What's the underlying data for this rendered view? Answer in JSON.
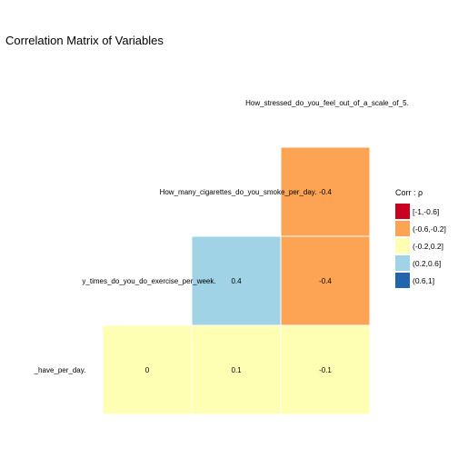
{
  "chart_data": {
    "type": "heatmap",
    "title": "Correlation Matrix of Variables",
    "variables": [
      "_have_per_day.",
      "y_times_do_you_do_exercise_per_week.",
      "How_many_cigarettes_do_you_smoke_per_day.",
      "How_stressed_do_you_feel_out_of_a_scale_of_5."
    ],
    "cells": [
      {
        "row": "_have_per_day.",
        "col": "y_times_do_you_do_exercise_per_week.",
        "value": 0,
        "label": "0",
        "bin": 2
      },
      {
        "row": "_have_per_day.",
        "col": "How_many_cigarettes_do_you_smoke_per_day.",
        "value": 0.1,
        "label": "0.1",
        "bin": 2
      },
      {
        "row": "_have_per_day.",
        "col": "How_stressed_do_you_feel_out_of_a_scale_of_5.",
        "value": -0.1,
        "label": "-0.1",
        "bin": 2
      },
      {
        "row": "y_times_do_you_do_exercise_per_week.",
        "col": "How_many_cigarettes_do_you_smoke_per_day.",
        "value": 0.4,
        "label": "0.4",
        "bin": 3
      },
      {
        "row": "y_times_do_you_do_exercise_per_week.",
        "col": "How_stressed_do_you_feel_out_of_a_scale_of_5.",
        "value": -0.4,
        "label": "-0.4",
        "bin": 1
      },
      {
        "row": "How_many_cigarettes_do_you_smoke_per_day.",
        "col": "How_stressed_do_you_feel_out_of_a_scale_of_5.",
        "value": -0.4,
        "label": "-0.4",
        "bin": 1
      }
    ],
    "legend": {
      "title": "Corr : ρ",
      "position": "right",
      "items": [
        {
          "label": "[-1,-0.6]",
          "color": "#ca0020"
        },
        {
          "label": "(-0.6,-0.2]",
          "color": "#fda354"
        },
        {
          "label": "(-0.2,0.2]",
          "color": "#ffffb3"
        },
        {
          "label": "(0.2,0.6]",
          "color": "#9fd3e5"
        },
        {
          "label": "(0.6,1]",
          "color": "#2166ac"
        }
      ]
    },
    "grid": false
  }
}
